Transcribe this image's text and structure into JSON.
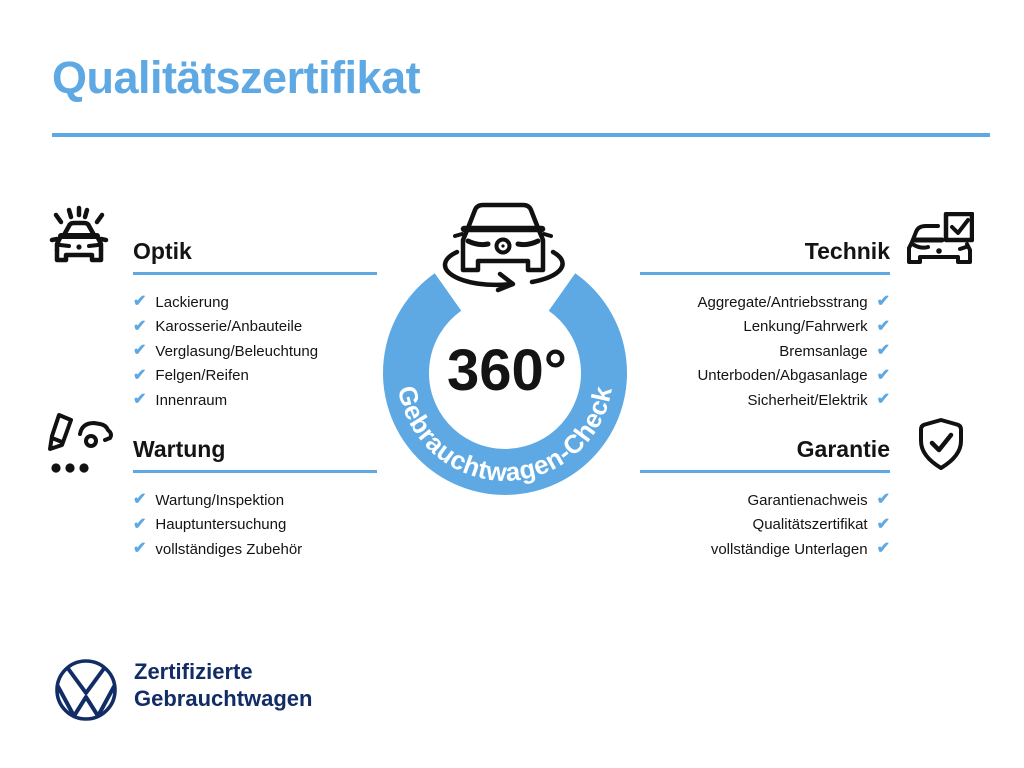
{
  "page": {
    "title": "Qualitätszertifikat"
  },
  "colors": {
    "accent_blue": "#5EA9E3",
    "navy": "#122D66",
    "text": "#141414",
    "ring_label_color": "#FFFFFF",
    "icon_stroke": "#111111"
  },
  "check_glyph": "✔",
  "center": {
    "degree_label": "360°",
    "ring_label": "Gebrauchtwagen-Check",
    "icon": "car-360-view-icon"
  },
  "sections": [
    {
      "id": "optik",
      "title": "Optik",
      "icon": "sparkling-car-icon",
      "items": [
        "Lackierung",
        "Karosserie/Anbauteile",
        "Verglasung/Beleuchtung",
        "Felgen/Reifen",
        "Innenraum"
      ]
    },
    {
      "id": "technik",
      "title": "Technik",
      "icon": "car-checklist-icon",
      "items": [
        "Aggregate/Antriebsstrang",
        "Lenkung/Fahrwerk",
        "Bremsanlage",
        "Unterboden/Abgasanlage",
        "Sicherheit/Elektrik"
      ]
    },
    {
      "id": "wartung",
      "title": "Wartung",
      "icon": "service-inspection-icon",
      "items": [
        "Wartung/Inspektion",
        "Hauptuntersuchung",
        "vollständiges Zubehör"
      ]
    },
    {
      "id": "garantie",
      "title": "Garantie",
      "icon": "shield-check-icon",
      "items": [
        "Garantienachweis",
        "Qualitätszertifikat",
        "vollständige Unterlagen"
      ]
    }
  ],
  "footer": {
    "logo": "vw-logo",
    "brand_line1": "Zertifizierte",
    "brand_line2": "Gebrauchtwagen"
  }
}
